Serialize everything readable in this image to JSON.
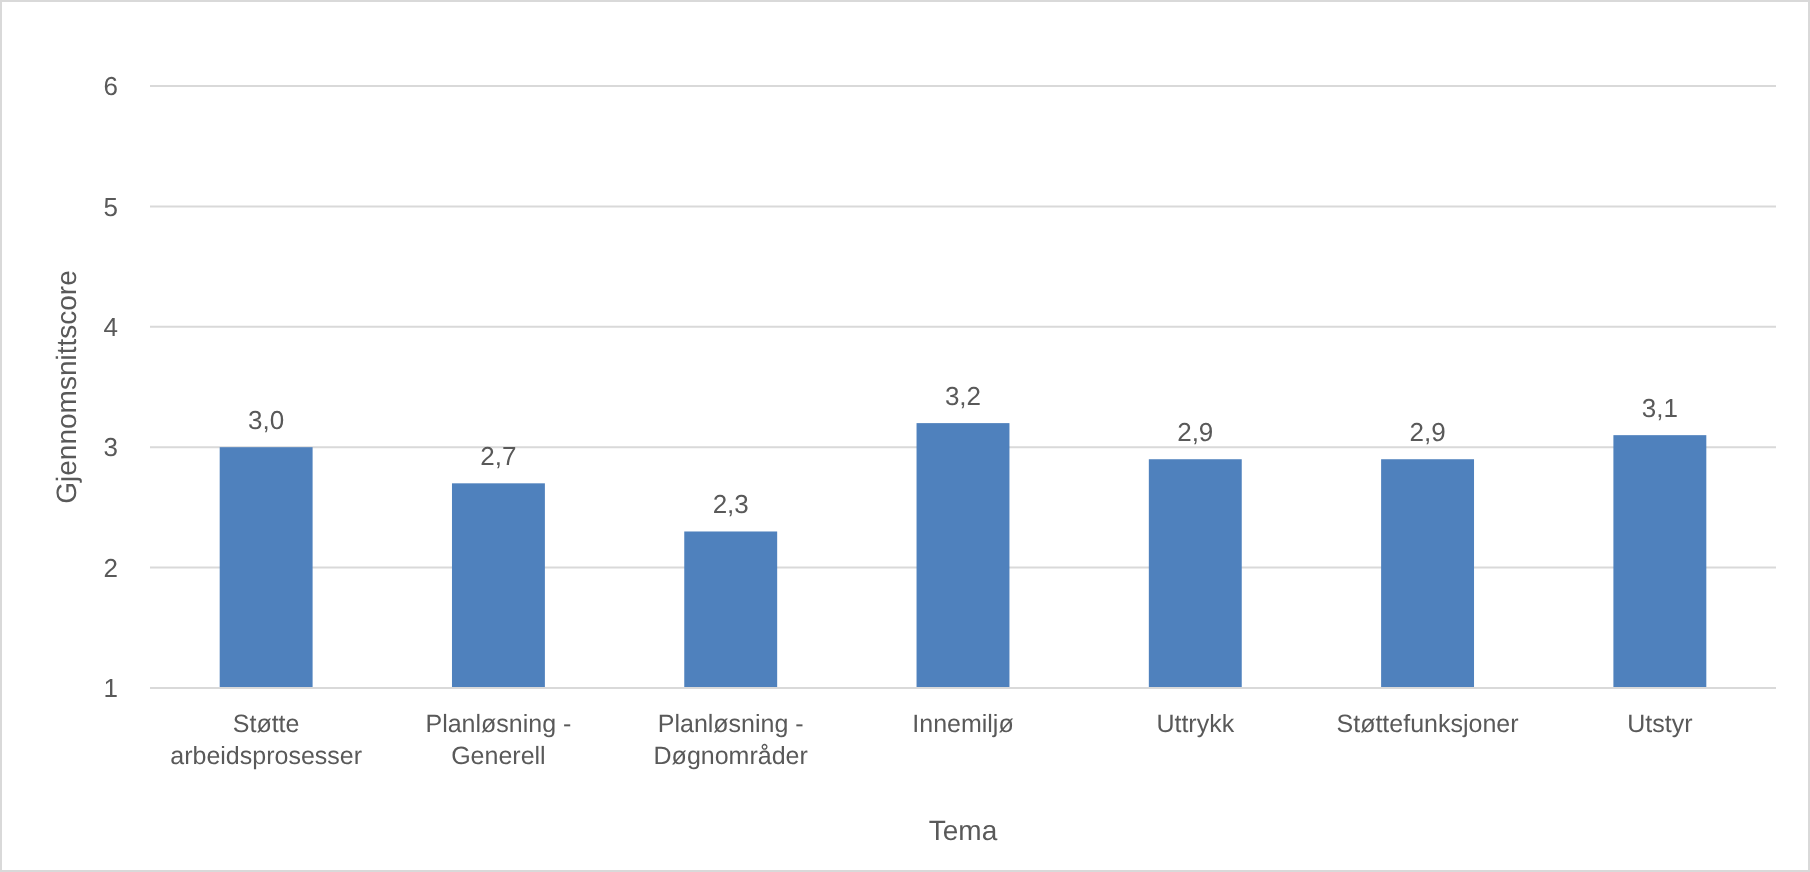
{
  "chart_data": {
    "type": "bar",
    "xlabel": "Tema",
    "ylabel": "Gjennomsnittscore",
    "categories": [
      "Støtte arbeidsprosesser",
      "Planløsning - Generell",
      "Planløsning - Døgnområder",
      "Innemiljø",
      "Uttrykk",
      "Støttefunksjoner",
      "Utstyr"
    ],
    "values": [
      3.0,
      2.7,
      2.3,
      3.2,
      2.9,
      2.9,
      3.1
    ],
    "value_labels": [
      "3,0",
      "2,7",
      "2,3",
      "3,2",
      "2,9",
      "2,9",
      "3,1"
    ],
    "color": "#4f81bd",
    "ylim": [
      1,
      6
    ],
    "yticks": [
      1,
      2,
      3,
      4,
      5,
      6
    ],
    "grid": "y"
  }
}
